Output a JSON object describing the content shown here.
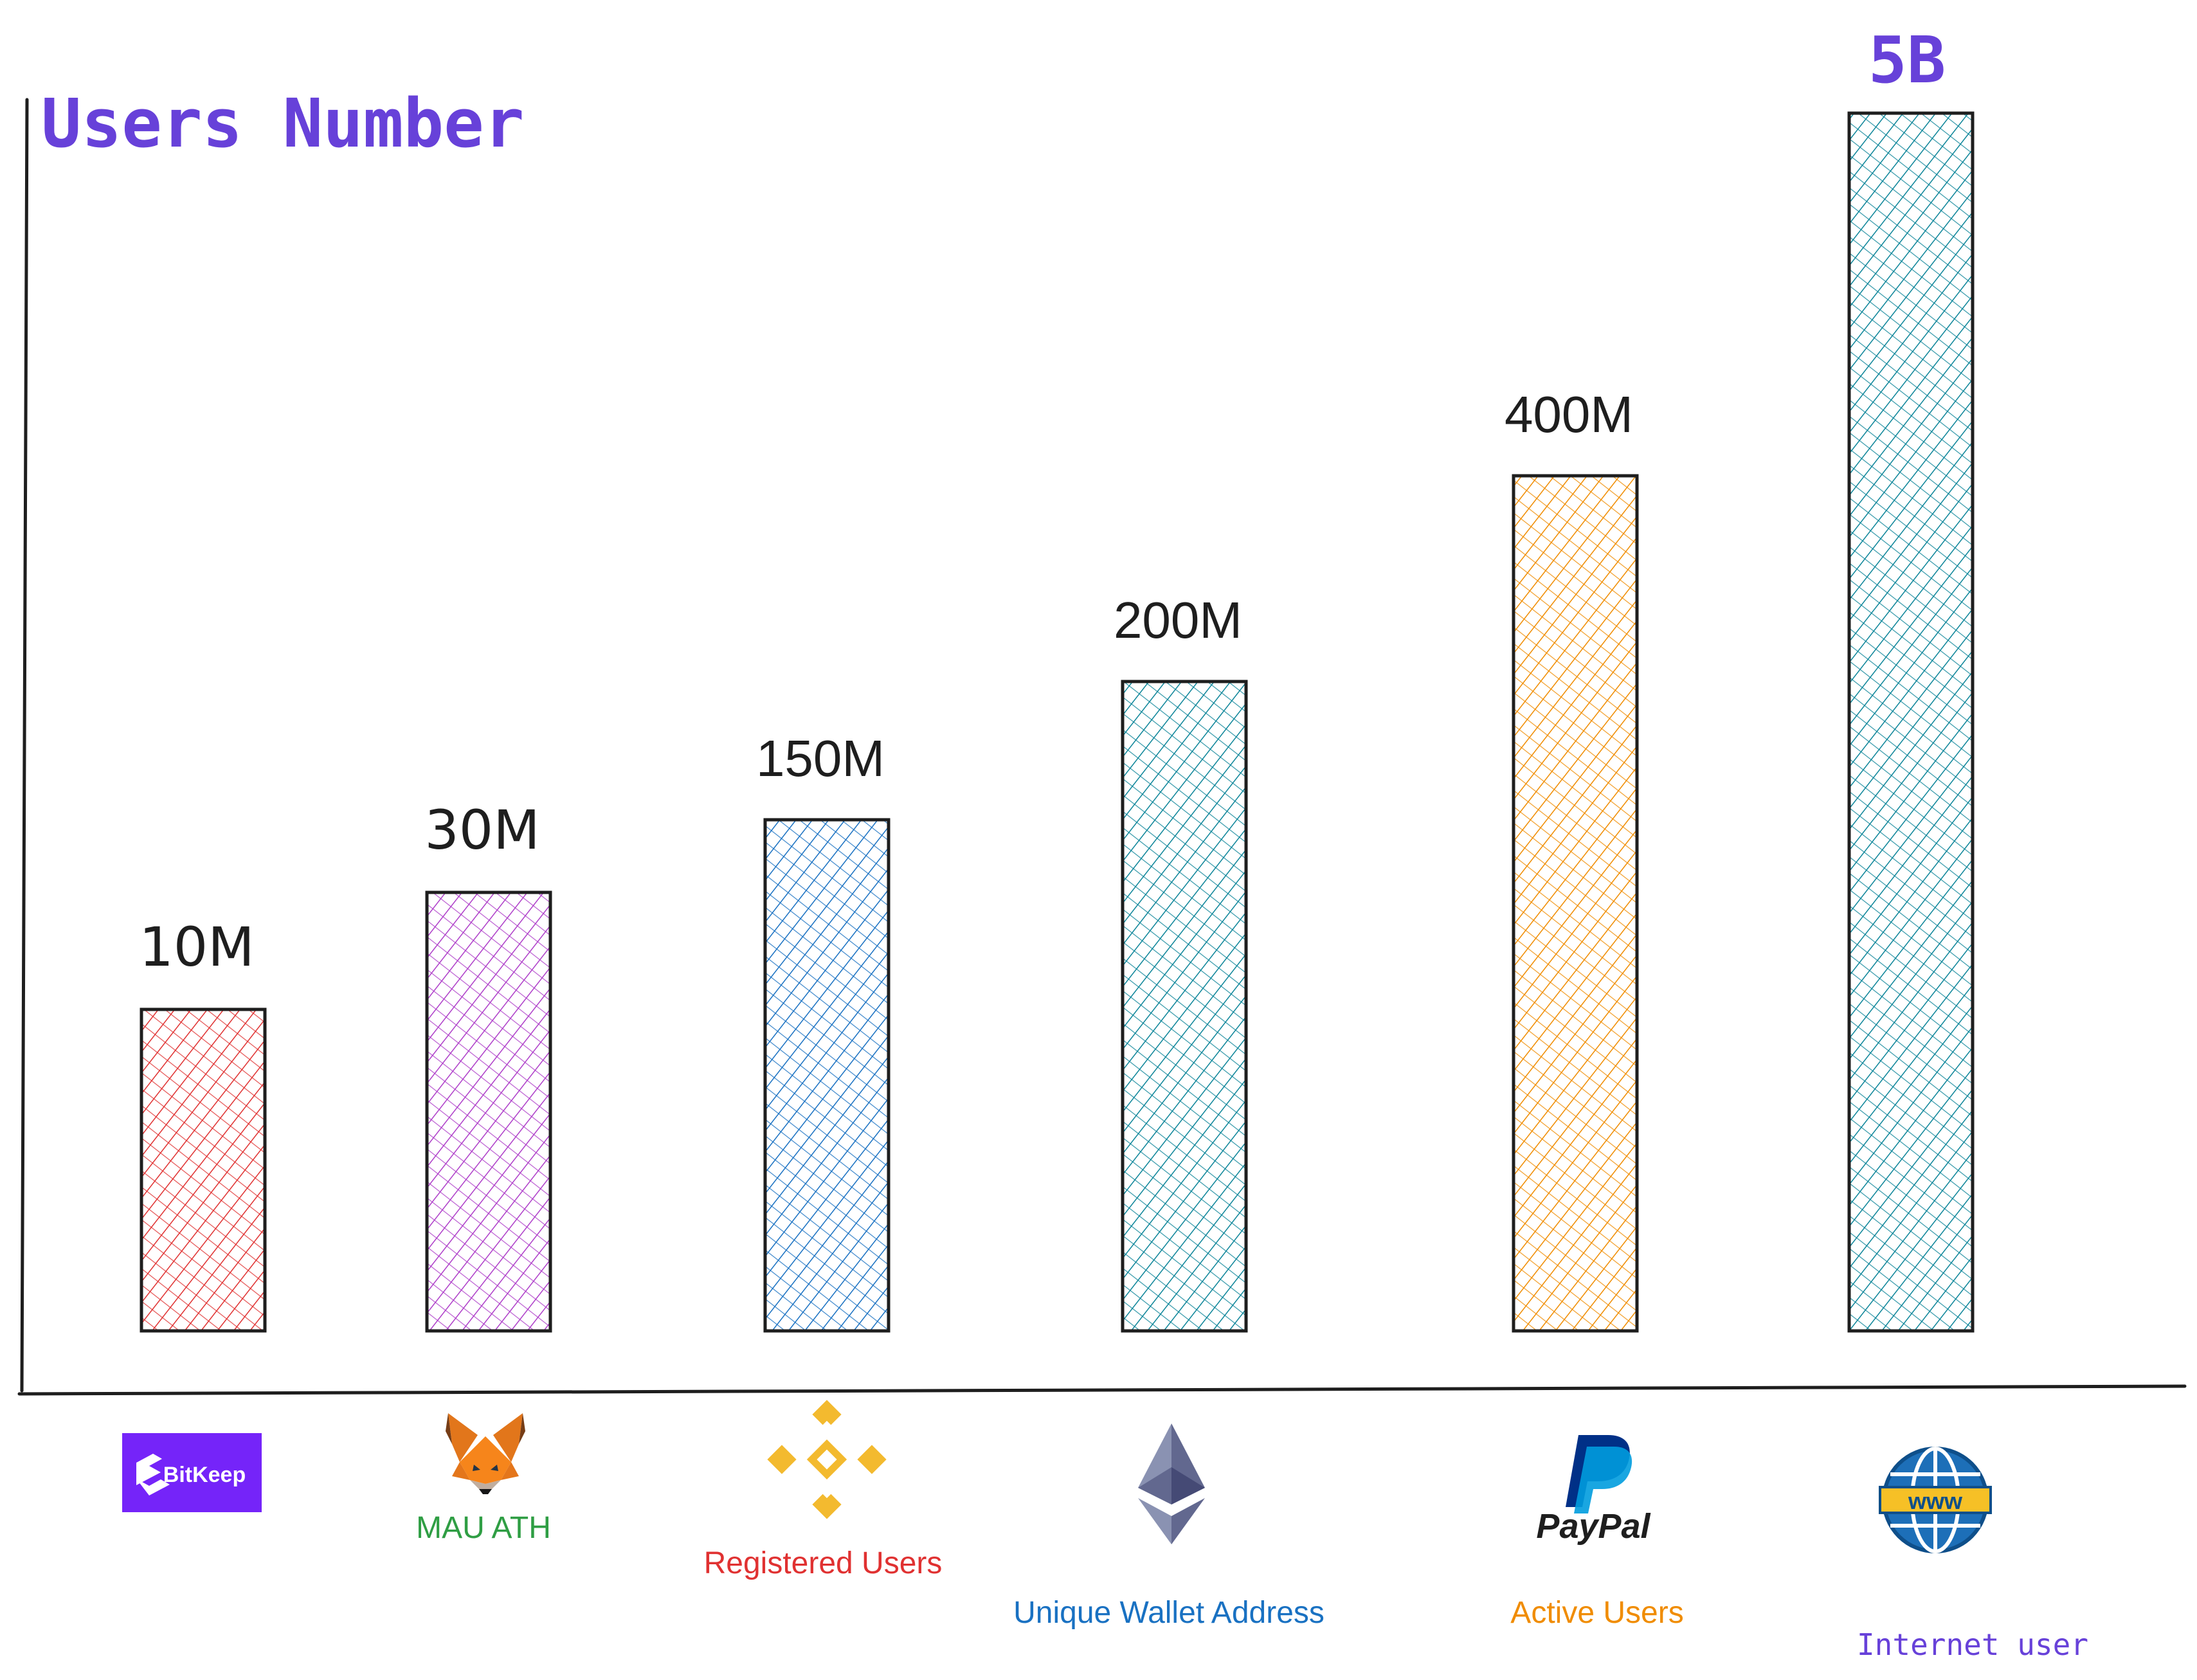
{
  "chart_data": {
    "type": "bar",
    "title": "Users Number",
    "categories": [
      "BitKeep",
      "MetaMask",
      "Binance",
      "Ethereum",
      "PayPal",
      "Internet"
    ],
    "values": [
      10000000,
      30000000,
      150000000,
      200000000,
      400000000,
      5000000000
    ],
    "value_labels": [
      "10M",
      "30M",
      "150M",
      "200M",
      "400M",
      "5B"
    ],
    "category_captions": [
      "",
      "MAU ATH",
      "Registered Users",
      "Unique Wallet Address",
      "Active Users",
      "Internet user"
    ],
    "logo_texts": [
      "BitKeep",
      "",
      "",
      "",
      "PayPal",
      "www"
    ],
    "scale": "non-linear (hand-drawn, bars not to scale)",
    "grid": false,
    "legend": "none",
    "colors": {
      "title": "#6741d9",
      "bars": [
        "#e03131",
        "#ae3ec9",
        "#1971c2",
        "#0c8599",
        "#f08c00",
        "#0c8599"
      ],
      "value_labels": [
        "#1e1e1e",
        "#1e1e1e",
        "#1e1e1e",
        "#1e1e1e",
        "#1e1e1e",
        "#6741d9"
      ],
      "captions": [
        "#2f9e44",
        "#2f9e44",
        "#e03131",
        "#1971c2",
        "#f08c00",
        "#6741d9"
      ]
    },
    "icons": [
      "bitkeep-logo-icon",
      "metamask-fox-icon",
      "binance-logo-icon",
      "ethereum-diamond-icon",
      "paypal-logo-icon",
      "www-globe-icon"
    ]
  }
}
